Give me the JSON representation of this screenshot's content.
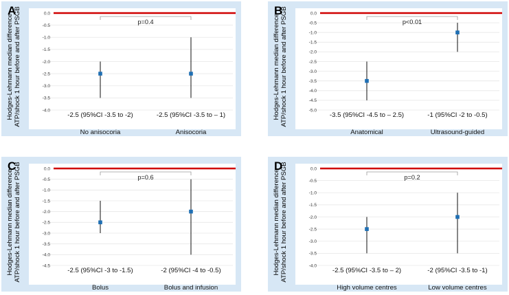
{
  "chart_data": [
    {
      "type": "scatter",
      "panel": "A",
      "ylabel": "Hodges-Lehmann median difference ATP/shock 1 hour before and after PSGB",
      "ylim": [
        -4.0,
        0.0
      ],
      "yticks": [
        0.0,
        -0.5,
        -1.0,
        -1.5,
        -2.0,
        -2.5,
        -3.0,
        -3.5,
        -4.0
      ],
      "tick_labels": [
        "0.0",
        "-0.5",
        "-1.0",
        "-1.5",
        "-2.0",
        "-2.5",
        "-3.0",
        "-3.5",
        "-4.0"
      ],
      "reference_line": 0.0,
      "categories": [
        "No anisocoria",
        "Anisocoria"
      ],
      "median": [
        -2.5,
        -2.5
      ],
      "ci_low": [
        -3.5,
        -3.5
      ],
      "ci_high": [
        -2.0,
        -1.0
      ],
      "ci_labels": [
        "-2.5 (95%CI -3.5 to -2)",
        "-2.5 (95%CI -3.5 to – 1)"
      ],
      "p_value": "p=0.4"
    },
    {
      "type": "scatter",
      "panel": "B",
      "ylabel": "Hodges-Lehmann median difference ATP/shock 1 hour before and after PSGB",
      "ylim": [
        -5.0,
        0.0
      ],
      "yticks": [
        0.0,
        -0.5,
        -1.0,
        -1.5,
        -2.0,
        -2.5,
        -3.0,
        -3.5,
        -4.0,
        -4.5,
        -5.0
      ],
      "tick_labels": [
        "0.0",
        "-0.5",
        "-1.0",
        "-1.5",
        "-2.0",
        "-2.5",
        "-3.0",
        "-3.5",
        "-4.0",
        "-4.5",
        "-5.0"
      ],
      "reference_line": 0.0,
      "categories": [
        "Anatomical",
        "Ultrasound-guided"
      ],
      "median": [
        -3.5,
        -1.0
      ],
      "ci_low": [
        -4.5,
        -2.0
      ],
      "ci_high": [
        -2.5,
        -0.5
      ],
      "ci_labels": [
        "-3.5 (95%CI -4.5 to – 2.5)",
        "-1 (95%CI -2 to -0.5)"
      ],
      "p_value": "p<0.01"
    },
    {
      "type": "scatter",
      "panel": "C",
      "ylabel": "Hodges-Lehmann median difference ATP/shock 1 hour before and after PSGB",
      "ylim": [
        -4.5,
        0.0
      ],
      "yticks": [
        0.0,
        -0.5,
        -1.0,
        -1.5,
        -2.0,
        -2.5,
        -3.0,
        -3.5,
        -4.0,
        -4.5
      ],
      "tick_labels": [
        "0.0",
        "-0.5",
        "-1.0",
        "-1.5",
        "-2.0",
        "-2.5",
        "-3.0",
        "-3.5",
        "-4.0",
        "-4.5"
      ],
      "reference_line": 0.0,
      "categories": [
        "Bolus",
        "Bolus and infusion"
      ],
      "median": [
        -2.5,
        -2.0
      ],
      "ci_low": [
        -3.0,
        -4.0
      ],
      "ci_high": [
        -1.5,
        -0.5
      ],
      "ci_labels": [
        "-2.5 (95%CI -3 to -1.5)",
        "-2 (95%CI -4 to -0.5)"
      ],
      "p_value": "p=0.6"
    },
    {
      "type": "scatter",
      "panel": "D",
      "ylabel": "Hodges-Lehmann median difference ATP/shock 1 hour before and after PSGB",
      "ylim": [
        -4.0,
        0.0
      ],
      "yticks": [
        0.0,
        -0.5,
        -1.0,
        -1.5,
        -2.0,
        -2.5,
        -3.0,
        -3.5,
        -4.0
      ],
      "tick_labels": [
        "0.0",
        "-0.5",
        "-1.0",
        "-1.5",
        "-2.0",
        "-2.5",
        "-3.0",
        "-3.5",
        "-4.0"
      ],
      "reference_line": 0.0,
      "categories": [
        "High volume centres",
        "Low volume centres"
      ],
      "median": [
        -2.5,
        -2.0
      ],
      "ci_low": [
        -3.5,
        -3.5
      ],
      "ci_high": [
        -2.0,
        -1.0
      ],
      "ci_labels": [
        "-2.5 (95%CI -3.5 to – 2)",
        "-2 (95%CI -3.5 to -1)"
      ],
      "p_value": "p=0.2"
    }
  ],
  "colors": {
    "panel_background": "#d7e7f5",
    "reference_line": "#d00000",
    "point": "#1f6fb4",
    "error_bar": "#222222",
    "grid": "#e6e6e6"
  }
}
